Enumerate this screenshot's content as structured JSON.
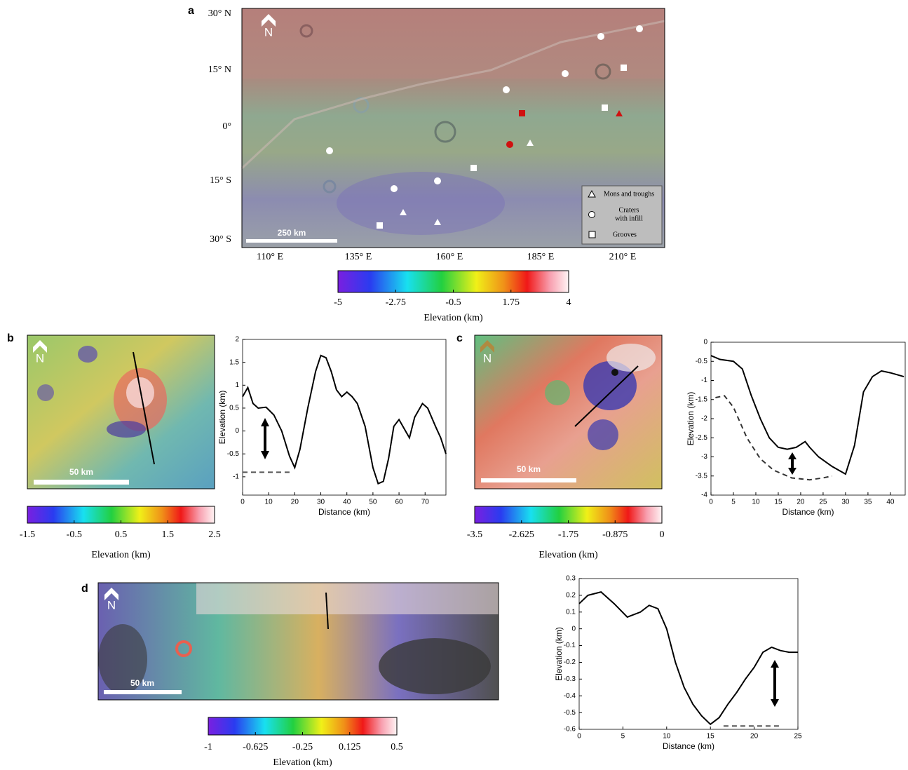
{
  "panel_labels": [
    "a",
    "b",
    "c",
    "d"
  ],
  "map_a": {
    "lat_labels": [
      "30° N",
      "15° N",
      "0°",
      "15° S",
      "30° S"
    ],
    "lon_labels": [
      "110° E",
      "135° E",
      "160° E",
      "185° E",
      "210° E"
    ],
    "legend": [
      {
        "lines": [
          "Mons and troughs"
        ]
      },
      {
        "lines": [
          "Craters",
          "with infill"
        ]
      },
      {
        "lines": [
          "Grooves"
        ]
      }
    ]
  },
  "maps": [
    {
      "north": "N",
      "scale_bar": "250 km"
    },
    {
      "north": "N",
      "scale_bar": "50 km"
    },
    {
      "north": "N",
      "scale_bar": "50 km"
    },
    {
      "north": "N",
      "scale_bar": "50 km"
    }
  ],
  "colorbars": [
    {
      "lim": [
        -5,
        4
      ],
      "ticks": [
        -5,
        -2.75,
        -0.5,
        1.75,
        4
      ],
      "label": "Elevation (km)"
    },
    {
      "lim": [
        -1.5,
        2.5
      ],
      "ticks": [
        -1.5,
        -0.5,
        0.5,
        1.5,
        2.5
      ],
      "label": "Elevation (km)"
    },
    {
      "lim": [
        -3.5,
        0
      ],
      "ticks": [
        -3.5,
        -2.625,
        -1.75,
        -0.875,
        0
      ],
      "label": "Elevation (km)"
    },
    {
      "lim": [
        -1,
        0.5
      ],
      "ticks": [
        -1,
        -0.625,
        -0.25,
        0.125,
        0.5
      ],
      "label": "Elevation (km)"
    }
  ],
  "chart_data": [
    {
      "type": "line",
      "x_label": "Distance (km)",
      "y_label": "Elevation (km)",
      "xlim": [
        0,
        78
      ],
      "ylim": [
        -1.4,
        2
      ],
      "xticks": [
        0,
        10,
        20,
        30,
        40,
        50,
        60,
        70
      ],
      "yticks": [
        -1,
        -0.5,
        0,
        0.5,
        1,
        1.5,
        2
      ],
      "series": [
        {
          "color": "#000000",
          "style": "solid",
          "x": [
            0,
            2,
            4,
            6,
            9,
            12,
            15,
            18,
            20,
            22,
            25,
            28,
            30,
            32,
            34,
            36,
            38,
            40,
            42,
            44,
            47,
            50,
            52,
            54,
            56,
            58,
            60,
            62,
            64,
            66,
            69,
            71,
            74,
            76,
            78
          ],
          "values": [
            0.75,
            0.95,
            0.6,
            0.5,
            0.52,
            0.35,
            0,
            -0.55,
            -0.8,
            -0.4,
            0.5,
            1.3,
            1.65,
            1.6,
            1.3,
            0.9,
            0.75,
            0.85,
            0.75,
            0.6,
            0.1,
            -0.8,
            -1.15,
            -1.1,
            -0.6,
            0.1,
            0.25,
            0.05,
            -0.15,
            0.3,
            0.6,
            0.5,
            0.1,
            -0.15,
            -0.5
          ]
        },
        {
          "color": "#555555",
          "style": "dashed",
          "x": [
            0,
            18
          ],
          "values": [
            -0.9,
            -0.9
          ]
        }
      ]
    },
    {
      "type": "line",
      "x_label": "Distance (km)",
      "y_label": "Elevation (km)",
      "xlim": [
        0,
        43.3
      ],
      "ylim": [
        -4,
        0
      ],
      "xticks": [
        0,
        5,
        10,
        15,
        20,
        25,
        30,
        35,
        40
      ],
      "yticks": [
        -4,
        -3.5,
        -3,
        -2.5,
        -2,
        -1.5,
        -1,
        -0.5,
        0
      ],
      "series": [
        {
          "color": "#000000",
          "style": "solid",
          "x": [
            0,
            2,
            5,
            7,
            9,
            11,
            13,
            15,
            17,
            19,
            21,
            22,
            24,
            27,
            30,
            32,
            34,
            36,
            38,
            40,
            43
          ],
          "values": [
            -0.35,
            -0.45,
            -0.5,
            -0.7,
            -1.4,
            -2,
            -2.5,
            -2.75,
            -2.8,
            -2.75,
            -2.6,
            -2.75,
            -3,
            -3.25,
            -3.45,
            -2.7,
            -1.3,
            -0.9,
            -0.75,
            -0.8,
            -0.9
          ]
        },
        {
          "color": "#333333",
          "style": "dashed",
          "x": [
            1,
            3,
            5,
            8,
            11,
            14,
            18,
            22,
            25,
            27
          ],
          "values": [
            -1.45,
            -1.4,
            -1.7,
            -2.5,
            -3.05,
            -3.35,
            -3.55,
            -3.6,
            -3.55,
            -3.5
          ]
        }
      ]
    },
    {
      "type": "line",
      "x_label": "Distance (km)",
      "y_label": "Elevation (km)",
      "xlim": [
        0,
        25
      ],
      "ylim": [
        -0.6,
        0.3
      ],
      "xticks": [
        0,
        5,
        10,
        15,
        20,
        25
      ],
      "yticks": [
        -0.6,
        -0.5,
        -0.4,
        -0.3,
        -0.2,
        -0.1,
        0,
        0.1,
        0.2,
        0.3
      ],
      "series": [
        {
          "color": "#000000",
          "style": "solid",
          "x": [
            0,
            1,
            2.5,
            4,
            5.5,
            7,
            8,
            9,
            10,
            11,
            12,
            13,
            14,
            15,
            16,
            17,
            18,
            19,
            20,
            21,
            22,
            23,
            24,
            25
          ],
          "values": [
            0.15,
            0.2,
            0.22,
            0.15,
            0.07,
            0.1,
            0.14,
            0.12,
            0,
            -0.2,
            -0.35,
            -0.45,
            -0.52,
            -0.57,
            -0.53,
            -0.45,
            -0.38,
            -0.3,
            -0.23,
            -0.14,
            -0.11,
            -0.13,
            -0.14,
            -0.14
          ]
        },
        {
          "color": "#555555",
          "style": "dashed",
          "x": [
            16.5,
            23
          ],
          "values": [
            -0.58,
            -0.58
          ]
        }
      ]
    }
  ]
}
